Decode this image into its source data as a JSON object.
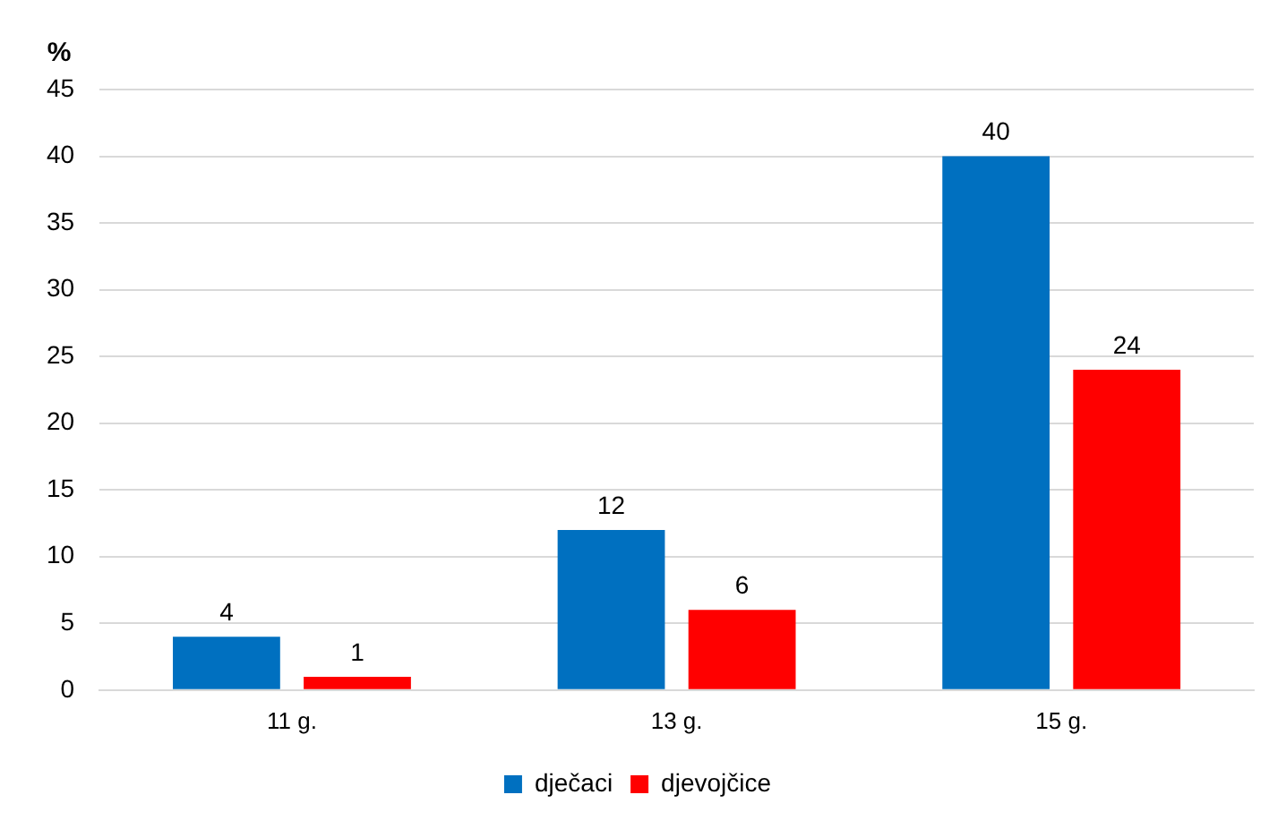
{
  "chart_data": {
    "type": "bar",
    "ylabel": "%",
    "categories": [
      "11 g.",
      "13 g.",
      "15 g."
    ],
    "series": [
      {
        "name": "dječaci",
        "color": "#0070c0",
        "values": [
          4,
          12,
          40
        ]
      },
      {
        "name": "djevojčice",
        "color": "#ff0000",
        "values": [
          1,
          6,
          24
        ]
      }
    ],
    "ylim": [
      0,
      45
    ],
    "yticks": [
      0,
      5,
      10,
      15,
      20,
      25,
      30,
      35,
      40,
      45
    ],
    "grid": "y",
    "legend": "bottom",
    "data_labels": true
  }
}
